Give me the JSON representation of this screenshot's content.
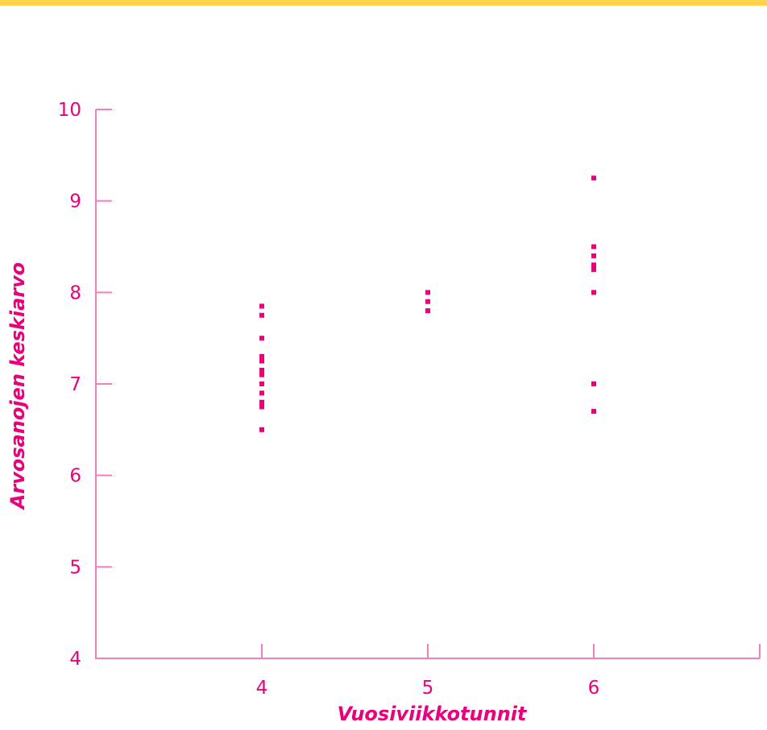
{
  "colors": {
    "accent": "#e8007d",
    "axis": "#f07fbf",
    "top_rule": "#ffd24a"
  },
  "chart_data": {
    "type": "scatter",
    "title": "",
    "xlabel": "Vuosiviikkotunnit",
    "ylabel": "Arvosanojen keskiarvo",
    "xlim": [
      3,
      7
    ],
    "ylim": [
      4,
      10
    ],
    "xticks": [
      4,
      5,
      6
    ],
    "yticks": [
      4,
      5,
      6,
      7,
      8,
      9,
      10
    ],
    "grid": false,
    "legend": "none",
    "points": [
      {
        "x": 4,
        "y": 7.85
      },
      {
        "x": 4,
        "y": 7.75
      },
      {
        "x": 4,
        "y": 7.5
      },
      {
        "x": 4,
        "y": 7.3
      },
      {
        "x": 4,
        "y": 7.25
      },
      {
        "x": 4,
        "y": 7.15
      },
      {
        "x": 4,
        "y": 7.1
      },
      {
        "x": 4,
        "y": 7.0
      },
      {
        "x": 4,
        "y": 6.9
      },
      {
        "x": 4,
        "y": 6.8
      },
      {
        "x": 4,
        "y": 6.75
      },
      {
        "x": 4,
        "y": 6.5
      },
      {
        "x": 5,
        "y": 8.0
      },
      {
        "x": 5,
        "y": 7.9
      },
      {
        "x": 5,
        "y": 7.8
      },
      {
        "x": 6,
        "y": 9.25
      },
      {
        "x": 6,
        "y": 8.5
      },
      {
        "x": 6,
        "y": 8.4
      },
      {
        "x": 6,
        "y": 8.3
      },
      {
        "x": 6,
        "y": 8.25
      },
      {
        "x": 6,
        "y": 8.0
      },
      {
        "x": 6,
        "y": 7.0
      },
      {
        "x": 6,
        "y": 6.7
      }
    ]
  }
}
